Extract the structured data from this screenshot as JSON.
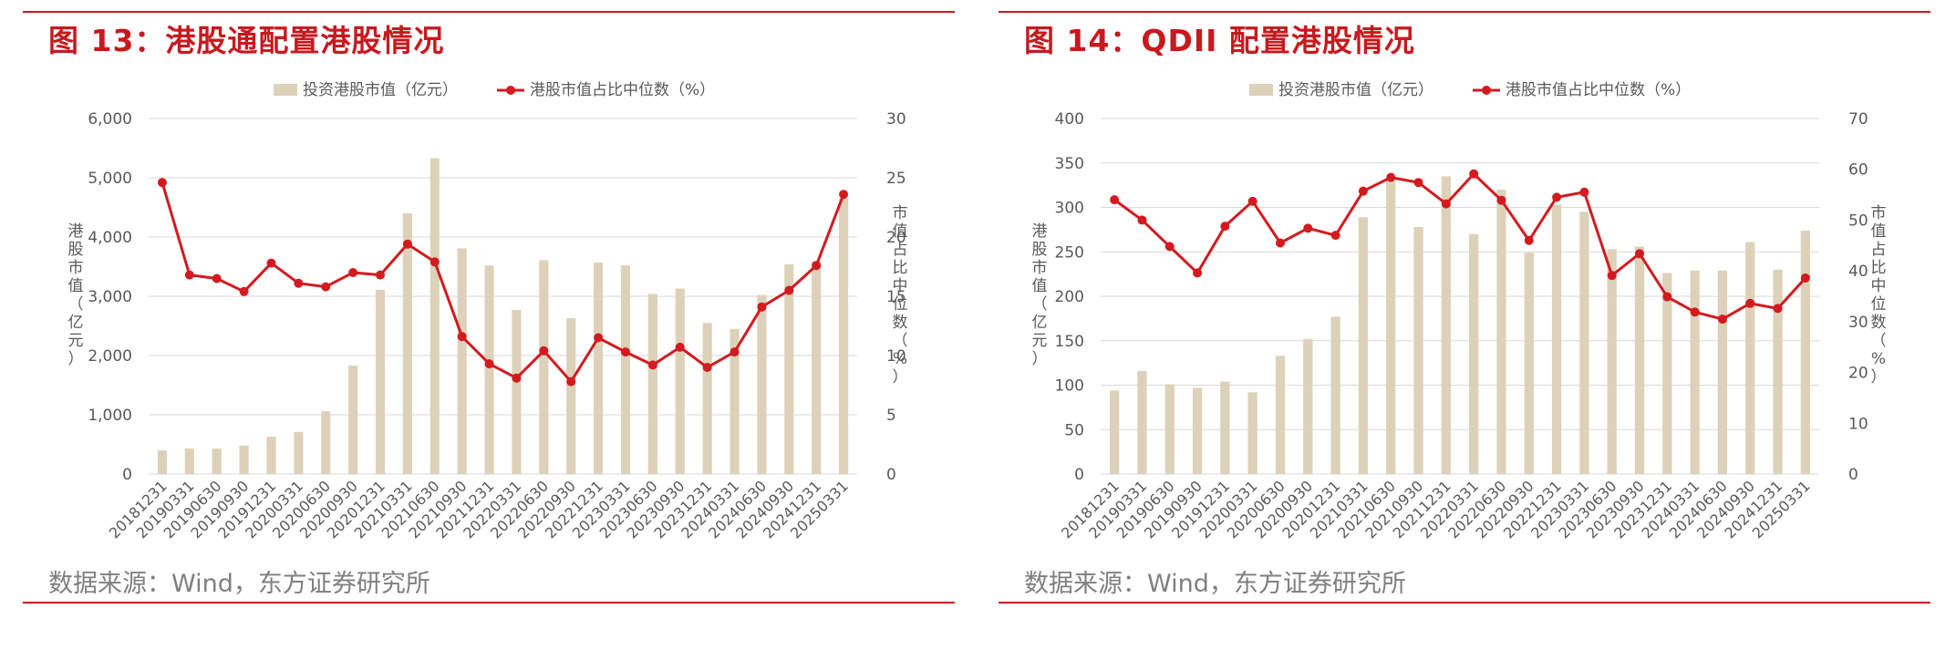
{
  "colors": {
    "accent": "#c8191e",
    "bar": "#ddd2b9",
    "line": "#d41a1f",
    "text": "#595959",
    "grid": "#d9d9d9"
  },
  "chart_data": [
    {
      "type": "bar+line",
      "title": "图 13：港股通配置港股情况",
      "source": "数据来源：Wind，东方证券研究所",
      "ylabel": "港股市值（亿元）",
      "y2label": "市值占比中位数（%）",
      "ylim": [
        0,
        6000
      ],
      "y2lim": [
        0,
        30
      ],
      "yticks": [
        "6,000",
        "5,000",
        "4,000",
        "3,000",
        "2,000",
        "1,000",
        "0"
      ],
      "y2ticks": [
        "30",
        "25",
        "20",
        "15",
        "10",
        "5",
        "0"
      ],
      "categories": [
        "20181231",
        "20190331",
        "20190630",
        "20190930",
        "20191231",
        "20200331",
        "20200630",
        "20200930",
        "20201231",
        "20210331",
        "20210630",
        "20210930",
        "20211231",
        "20220331",
        "20220630",
        "20220930",
        "20221231",
        "20230331",
        "20230630",
        "20230930",
        "20231231",
        "20240331",
        "20240630",
        "20240930",
        "20241231",
        "20250331"
      ],
      "series": [
        {
          "name": "投资港股市值（亿元）",
          "type": "bar",
          "axis": "left",
          "values": [
            400,
            430,
            430,
            480,
            630,
            710,
            1060,
            1830,
            3110,
            4400,
            5330,
            3810,
            3520,
            2770,
            3610,
            2630,
            3570,
            3520,
            3040,
            3130,
            2550,
            2450,
            3020,
            3540,
            3590,
            4650
          ]
        },
        {
          "name": "港股市值占比中位数（%）",
          "type": "line",
          "axis": "right",
          "values": [
            24.6,
            16.8,
            16.5,
            15.4,
            17.8,
            16.1,
            15.8,
            17.0,
            16.8,
            19.4,
            17.9,
            11.6,
            9.3,
            8.1,
            10.4,
            7.8,
            11.5,
            10.3,
            9.2,
            10.7,
            9.0,
            10.3,
            14.1,
            15.5,
            17.6,
            23.6
          ]
        }
      ],
      "legend": "top-center",
      "grid": true
    },
    {
      "type": "bar+line",
      "title": "图 14：QDII 配置港股情况",
      "source": "数据来源：Wind，东方证券研究所",
      "ylabel": "港股市值（亿元）",
      "y2label": "市值占比中位数（%）",
      "ylim": [
        0,
        400
      ],
      "y2lim": [
        0,
        70
      ],
      "yticks": [
        "400",
        "350",
        "300",
        "250",
        "200",
        "150",
        "100",
        "50",
        "0"
      ],
      "y2ticks": [
        "70",
        "60",
        "50",
        "40",
        "30",
        "20",
        "10",
        "0"
      ],
      "categories": [
        "20181231",
        "20190331",
        "20190630",
        "20190930",
        "20191231",
        "20200331",
        "20200630",
        "20200930",
        "20201231",
        "20210331",
        "20210630",
        "20210930",
        "20211231",
        "20220331",
        "20220630",
        "20220930",
        "20221231",
        "20230331",
        "20230630",
        "20230930",
        "20231231",
        "20240331",
        "20240630",
        "20240930",
        "20241231",
        "20250331"
      ],
      "series": [
        {
          "name": "投资港股市值（亿元）",
          "type": "bar",
          "axis": "left",
          "values": [
            94,
            116,
            101,
            97,
            104,
            92,
            133,
            152,
            177,
            289,
            330,
            278,
            335,
            270,
            320,
            249,
            303,
            295,
            253,
            256,
            226,
            229,
            229,
            261,
            230,
            274
          ]
        },
        {
          "name": "港股市值占比中位数（%）",
          "type": "line",
          "axis": "right",
          "values": [
            54.0,
            50.0,
            44.8,
            39.6,
            48.8,
            53.7,
            45.5,
            48.4,
            47.0,
            55.7,
            58.4,
            57.4,
            53.2,
            59.1,
            53.9,
            46.0,
            54.5,
            55.5,
            39.1,
            43.4,
            34.9,
            31.9,
            30.5,
            33.6,
            32.6,
            38.6
          ]
        }
      ],
      "legend": "top-center",
      "grid": true
    }
  ]
}
